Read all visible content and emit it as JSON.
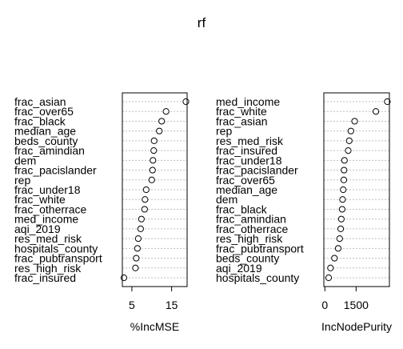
{
  "title": "rf",
  "chart_data": [
    {
      "type": "dotchart",
      "xlabel": "%IncMSE",
      "xlim": [
        2.6,
        18.9
      ],
      "xticks": [
        5,
        15
      ],
      "labels": [
        "frac_asian",
        "frac_over65",
        "frac_black",
        "median_age",
        "beds_county",
        "frac_amindian",
        "dem",
        "frac_pacislander",
        "rep",
        "frac_under18",
        "frac_white",
        "frac_otherrace",
        "med_income",
        "aqi_2019",
        "res_med_risk",
        "hospitals_county",
        "frac_pubtransport",
        "res_high_risk",
        "frac_insured"
      ],
      "values": [
        18.6,
        13.6,
        12.5,
        11.9,
        10.6,
        10.5,
        10.3,
        10.2,
        10.0,
        8.6,
        8.3,
        8.2,
        7.4,
        7.2,
        6.6,
        6.4,
        6.1,
        5.9,
        3.0
      ]
    },
    {
      "type": "dotchart",
      "xlabel": "IncNodePurity",
      "xlim": [
        -50,
        3100
      ],
      "xticks": [
        0,
        1500
      ],
      "labels": [
        "med_income",
        "frac_white",
        "frac_asian",
        "rep",
        "res_med_risk",
        "frac_insured",
        "frac_under18",
        "frac_pacislander",
        "frac_over65",
        "median_age",
        "dem",
        "frac_black",
        "frac_amindian",
        "frac_otherrace",
        "res_high_risk",
        "frac_pubtransport",
        "beds_county",
        "aqi_2019",
        "hospitals_county"
      ],
      "values": [
        3000,
        2450,
        1430,
        1250,
        1170,
        1120,
        940,
        920,
        910,
        880,
        850,
        830,
        790,
        760,
        710,
        640,
        460,
        270,
        180
      ]
    }
  ]
}
